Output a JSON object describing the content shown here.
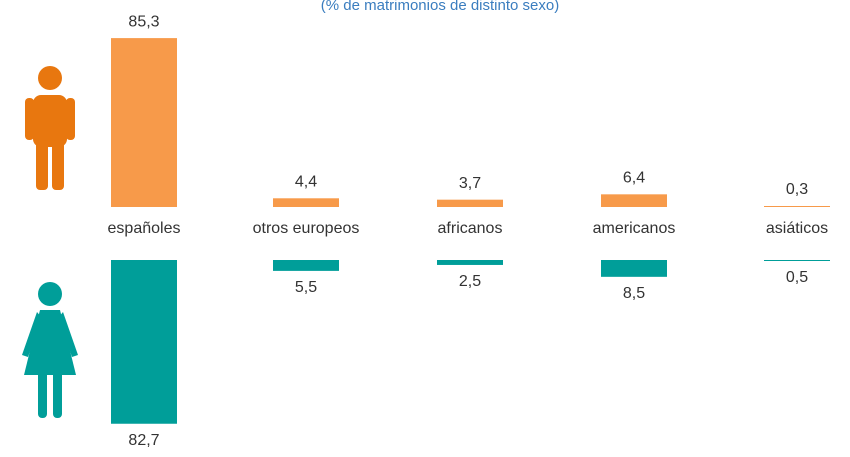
{
  "chart_data": {
    "type": "bar",
    "subtitle": "(% de matrimonios de distinto sexo)",
    "categories": [
      "españoles",
      "otros europeos",
      "africanos",
      "americanos",
      "asiáticos"
    ],
    "series": [
      {
        "color": "#f79a4a",
        "values": [
          85.3,
          4.4,
          3.7,
          6.4,
          0.3
        ],
        "value_labels": [
          "85,3",
          "4,4",
          "3,7",
          "6,4",
          "0,3"
        ]
      },
      {
        "color": "#009e99",
        "values": [
          82.7,
          5.5,
          2.5,
          8.5,
          0.5
        ],
        "value_labels": [
          "82,7",
          "5,5",
          "2,5",
          "8,5",
          "0,5"
        ]
      }
    ]
  }
}
